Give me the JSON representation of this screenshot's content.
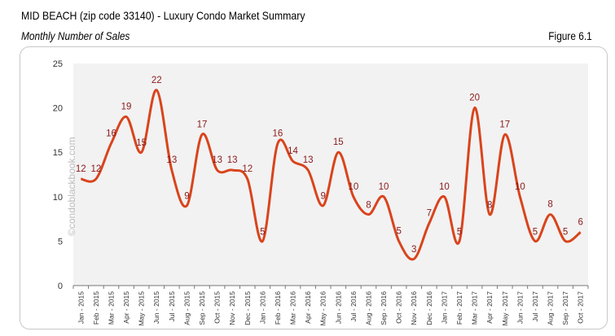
{
  "header": {
    "title": "MID BEACH (zip code 33140) - Luxury Condo Market Summary",
    "subtitle": "Monthly Number of Sales",
    "figure": "Figure 6.1"
  },
  "watermark": "©condoblackbook.com",
  "chart_data": {
    "type": "line",
    "title": "Monthly Number of Sales",
    "xlabel": "",
    "ylabel": "",
    "ylim": [
      0,
      25
    ],
    "yticks": [
      0,
      5,
      10,
      15,
      20,
      25
    ],
    "grid": false,
    "line_color": "#d9441c",
    "label_color": "#8b1a1a",
    "plot_bg": "#f2f2f2",
    "categories": [
      "Jan - 2015",
      "Feb - 2015",
      "Mar - 2015",
      "Apr - 2015",
      "May - 2015",
      "Jun - 2015",
      "Jul - 2015",
      "Aug - 2015",
      "Sep - 2015",
      "Oct - 2015",
      "Nov - 2015",
      "Dec - 2015",
      "Jan - 2016",
      "Feb - 2016",
      "Mar - 2016",
      "Apr - 2016",
      "May - 2016",
      "Jun - 2016",
      "Jul - 2016",
      "Aug - 2016",
      "Sep - 2016",
      "Oct - 2016",
      "Nov - 2016",
      "Dec - 2016",
      "Jan - 2017",
      "Feb - 2017",
      "Mar - 2017",
      "Apr - 2017",
      "May - 2017",
      "Jun - 2017",
      "Jul - 2017",
      "Aug - 2017",
      "Sep - 2017",
      "Oct - 2017"
    ],
    "values": [
      12,
      12,
      16,
      19,
      15,
      22,
      13,
      9,
      17,
      13,
      13,
      12,
      5,
      16,
      14,
      13,
      9,
      15,
      10,
      8,
      10,
      5,
      3,
      7,
      10,
      5,
      20,
      8,
      17,
      10,
      5,
      8,
      5,
      6
    ]
  }
}
